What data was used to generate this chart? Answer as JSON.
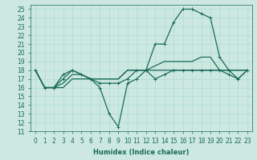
{
  "xlabel": "Humidex (Indice chaleur)",
  "bg_color": "#cce8e0",
  "line_color": "#1a6b5a",
  "xlim": [
    -0.5,
    23.5
  ],
  "ylim": [
    11,
    25.5
  ],
  "xticks": [
    0,
    1,
    2,
    3,
    4,
    5,
    6,
    7,
    8,
    9,
    10,
    11,
    12,
    13,
    14,
    15,
    16,
    17,
    18,
    19,
    20,
    21,
    22,
    23
  ],
  "yticks": [
    11,
    12,
    13,
    14,
    15,
    16,
    17,
    18,
    19,
    20,
    21,
    22,
    23,
    24,
    25
  ],
  "lines": [
    {
      "x": [
        0,
        1,
        2,
        3,
        4,
        5,
        6,
        7,
        8,
        9,
        10,
        11,
        12,
        13,
        14,
        15,
        16,
        17,
        18,
        19,
        20,
        21,
        22,
        23
      ],
      "y": [
        18,
        16,
        16,
        16,
        17,
        17,
        17,
        17,
        17,
        17,
        18,
        18,
        18,
        18,
        18,
        18,
        18,
        18,
        18,
        18,
        18,
        18,
        18,
        18
      ],
      "marker": null
    },
    {
      "x": [
        0,
        1,
        2,
        3,
        4,
        5,
        6,
        7,
        8,
        9,
        10,
        11,
        12,
        13,
        14,
        15,
        16,
        17,
        18,
        19,
        20,
        21,
        22,
        23
      ],
      "y": [
        18,
        16,
        16,
        16.5,
        17.5,
        17.5,
        17,
        17,
        17,
        17,
        18,
        18,
        18,
        18.5,
        19,
        19,
        19,
        19,
        19.5,
        19.5,
        18,
        18,
        18,
        18
      ],
      "marker": null
    },
    {
      "x": [
        0,
        1,
        2,
        3,
        4,
        5,
        6,
        7,
        8,
        9,
        10,
        11,
        12,
        13,
        14,
        15,
        16,
        17,
        18,
        19,
        20,
        21,
        22,
        23
      ],
      "y": [
        18,
        16,
        16,
        17.5,
        18,
        17.5,
        17,
        16,
        13,
        11.5,
        16.5,
        17,
        18,
        17,
        17.5,
        18,
        18,
        18,
        18,
        18,
        18,
        17.5,
        17,
        18
      ],
      "marker": "+"
    },
    {
      "x": [
        0,
        1,
        2,
        3,
        4,
        5,
        6,
        7,
        8,
        9,
        10,
        11,
        12,
        13,
        14,
        15,
        16,
        17,
        18,
        19,
        20,
        21,
        22,
        23
      ],
      "y": [
        18,
        16,
        16,
        17,
        18,
        17.5,
        17,
        16.5,
        16.5,
        16.5,
        17,
        18,
        18,
        21,
        21,
        23.5,
        25,
        25,
        24.5,
        24,
        19.5,
        18,
        17,
        18
      ],
      "marker": "+"
    }
  ],
  "grid_color": "#a8d8cc",
  "marker_size": 3,
  "line_width": 0.9,
  "tick_fontsize": 5.5,
  "xlabel_fontsize": 6.0
}
